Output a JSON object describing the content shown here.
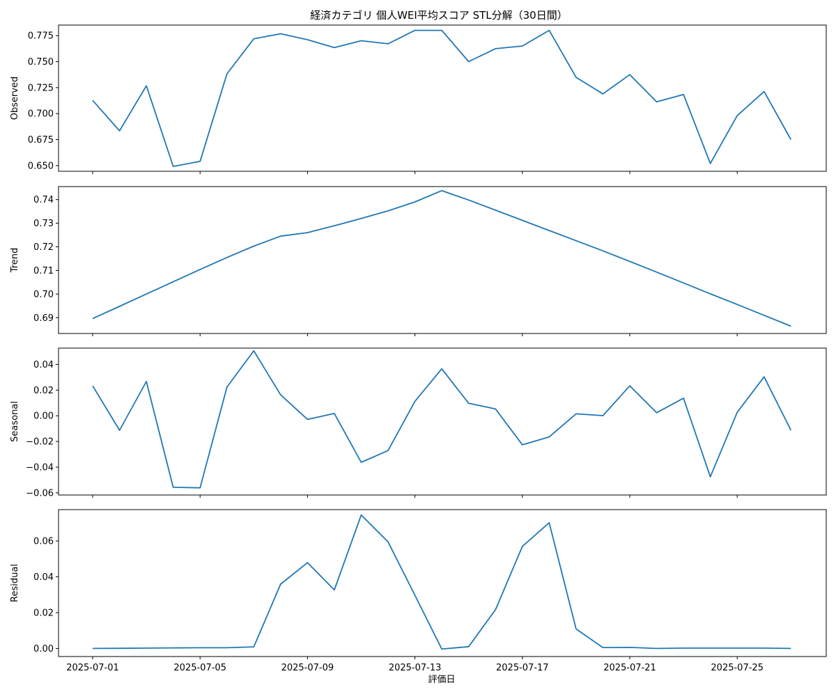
{
  "title": "経済カテゴリ 個人WEI平均スコア STL分解（30日間）",
  "xlabel": "評価日",
  "x_ticks": [
    "2025-07-01",
    "2025-07-05",
    "2025-07-09",
    "2025-07-13",
    "2025-07-17",
    "2025-07-21",
    "2025-07-25"
  ],
  "colors": {
    "line": "#1f77b4"
  },
  "chart_data": [
    {
      "type": "line",
      "ylabel": "Observed",
      "ylim": [
        0.6445,
        0.7852
      ],
      "y_ticks": [
        "0.650",
        "0.675",
        "0.700",
        "0.725",
        "0.750",
        "0.775"
      ],
      "x": [
        "2025-07-01",
        "2025-07-02",
        "2025-07-03",
        "2025-07-04",
        "2025-07-05",
        "2025-07-06",
        "2025-07-07",
        "2025-07-08",
        "2025-07-09",
        "2025-07-10",
        "2025-07-11",
        "2025-07-12",
        "2025-07-13",
        "2025-07-14",
        "2025-07-15",
        "2025-07-16",
        "2025-07-17",
        "2025-07-18",
        "2025-07-19",
        "2025-07-20",
        "2025-07-21",
        "2025-07-22",
        "2025-07-23",
        "2025-07-24",
        "2025-07-25",
        "2025-07-26",
        "2025-07-27"
      ],
      "values": [
        0.7127,
        0.6834,
        0.7268,
        0.6492,
        0.654,
        0.7383,
        0.772,
        0.7768,
        0.7711,
        0.7635,
        0.7701,
        0.7672,
        0.7801,
        0.7801,
        0.75,
        0.7625,
        0.765,
        0.7801,
        0.7349,
        0.719,
        0.7375,
        0.7113,
        0.7184,
        0.652,
        0.698,
        0.7213,
        0.675
      ]
    },
    {
      "type": "line",
      "ylabel": "Trend",
      "ylim": [
        0.6833,
        0.7455
      ],
      "y_ticks": [
        "0.69",
        "0.70",
        "0.71",
        "0.72",
        "0.73",
        "0.74"
      ],
      "x": [
        "2025-07-01",
        "2025-07-02",
        "2025-07-03",
        "2025-07-04",
        "2025-07-05",
        "2025-07-06",
        "2025-07-07",
        "2025-07-08",
        "2025-07-09",
        "2025-07-10",
        "2025-07-11",
        "2025-07-12",
        "2025-07-13",
        "2025-07-14",
        "2025-07-15",
        "2025-07-16",
        "2025-07-17",
        "2025-07-18",
        "2025-07-19",
        "2025-07-20",
        "2025-07-21",
        "2025-07-22",
        "2025-07-23",
        "2025-07-24",
        "2025-07-25",
        "2025-07-26",
        "2025-07-27"
      ],
      "values": [
        0.6896,
        0.6948,
        0.7,
        0.7052,
        0.7104,
        0.7155,
        0.7203,
        0.7245,
        0.726,
        0.7289,
        0.732,
        0.7352,
        0.739,
        0.7438,
        0.7398,
        0.7355,
        0.7312,
        0.7269,
        0.7226,
        0.7183,
        0.7138,
        0.7093,
        0.7047,
        0.7001,
        0.6956,
        0.691,
        0.6864
      ]
    },
    {
      "type": "line",
      "ylabel": "Seasonal",
      "ylim": [
        -0.0617,
        0.0527
      ],
      "y_ticks": [
        "−0.06",
        "−0.04",
        "−0.02",
        "0.00",
        "0.02",
        "0.04"
      ],
      "x": [
        "2025-07-01",
        "2025-07-02",
        "2025-07-03",
        "2025-07-04",
        "2025-07-05",
        "2025-07-06",
        "2025-07-07",
        "2025-07-08",
        "2025-07-09",
        "2025-07-10",
        "2025-07-11",
        "2025-07-12",
        "2025-07-13",
        "2025-07-14",
        "2025-07-15",
        "2025-07-16",
        "2025-07-17",
        "2025-07-18",
        "2025-07-19",
        "2025-07-20",
        "2025-07-21",
        "2025-07-22",
        "2025-07-23",
        "2025-07-24",
        "2025-07-25",
        "2025-07-26",
        "2025-07-27"
      ],
      "values": [
        0.0233,
        -0.0113,
        0.0267,
        -0.0557,
        -0.0561,
        0.0224,
        0.0506,
        0.0163,
        -0.0028,
        0.0018,
        -0.0362,
        -0.0271,
        0.0113,
        0.0366,
        0.0097,
        0.0053,
        -0.0226,
        -0.0165,
        0.0015,
        0.0001,
        0.0233,
        0.0024,
        0.0137,
        -0.0475,
        0.0027,
        0.0303,
        -0.0113
      ]
    },
    {
      "type": "line",
      "ylabel": "Residual",
      "ylim": [
        -0.0045,
        0.0775
      ],
      "y_ticks": [
        "0.00",
        "0.02",
        "0.04",
        "0.06"
      ],
      "x": [
        "2025-07-01",
        "2025-07-02",
        "2025-07-03",
        "2025-07-04",
        "2025-07-05",
        "2025-07-06",
        "2025-07-07",
        "2025-07-08",
        "2025-07-09",
        "2025-07-10",
        "2025-07-11",
        "2025-07-12",
        "2025-07-13",
        "2025-07-14",
        "2025-07-15",
        "2025-07-16",
        "2025-07-17",
        "2025-07-18",
        "2025-07-19",
        "2025-07-20",
        "2025-07-21",
        "2025-07-22",
        "2025-07-23",
        "2025-07-24",
        "2025-07-25",
        "2025-07-26",
        "2025-07-27"
      ],
      "values": [
        0.0,
        0.0001,
        0.0002,
        0.0003,
        0.0004,
        0.0004,
        0.0009,
        0.0359,
        0.0479,
        0.0327,
        0.0745,
        0.0595,
        0.0297,
        -0.0003,
        0.001,
        0.0217,
        0.057,
        0.0702,
        0.0109,
        0.0005,
        0.0006,
        0.0,
        0.0002,
        0.0002,
        0.0002,
        0.0002,
        0.0
      ]
    }
  ]
}
